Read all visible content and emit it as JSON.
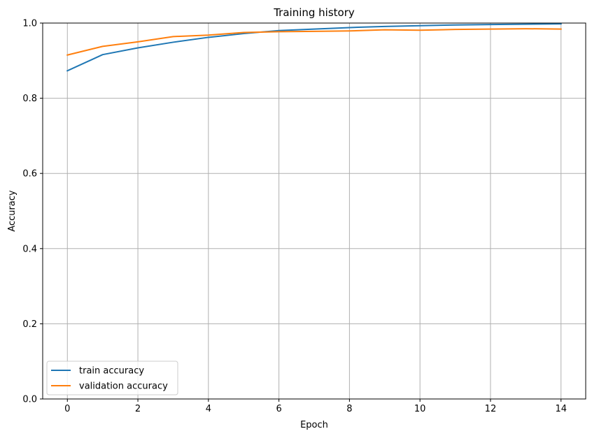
{
  "chart_data": {
    "type": "line",
    "title": "Training history",
    "xlabel": "Epoch",
    "ylabel": "Accuracy",
    "xlim": [
      -0.7,
      14.7
    ],
    "ylim": [
      0.0,
      1.0
    ],
    "xticks": [
      0,
      2,
      4,
      6,
      8,
      10,
      12,
      14
    ],
    "xtick_labels": [
      "0",
      "2",
      "4",
      "6",
      "8",
      "10",
      "12",
      "14"
    ],
    "yticks": [
      0.0,
      0.2,
      0.4,
      0.6,
      0.8,
      1.0
    ],
    "ytick_labels": [
      "0.0",
      "0.2",
      "0.4",
      "0.6",
      "0.8",
      "1.0"
    ],
    "grid": true,
    "legend_position": "lower-left",
    "x": [
      0,
      1,
      2,
      3,
      4,
      5,
      6,
      7,
      8,
      9,
      10,
      11,
      12,
      13,
      14
    ],
    "series": [
      {
        "name": "train accuracy",
        "color": "#1f77b4",
        "values": [
          0.873,
          0.916,
          0.934,
          0.949,
          0.962,
          0.972,
          0.98,
          0.984,
          0.988,
          0.991,
          0.993,
          0.995,
          0.996,
          0.997,
          0.998
        ]
      },
      {
        "name": "validation accuracy",
        "color": "#ff7f0e",
        "values": [
          0.915,
          0.938,
          0.95,
          0.964,
          0.968,
          0.975,
          0.977,
          0.978,
          0.979,
          0.982,
          0.981,
          0.983,
          0.984,
          0.985,
          0.984
        ]
      }
    ]
  }
}
